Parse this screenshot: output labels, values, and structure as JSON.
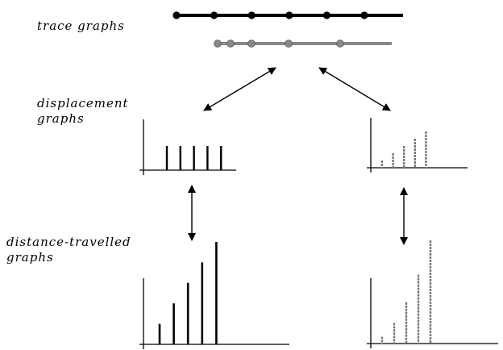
{
  "labels": {
    "trace": [
      "trace graphs"
    ],
    "displacement": [
      "displacement",
      "graphs"
    ],
    "distance": [
      "distance-travelled",
      "graphs"
    ]
  },
  "colors": {
    "ink": "#000000",
    "grey": "#888888"
  },
  "trace": {
    "uniform": {
      "color": "ink",
      "dots": 6
    },
    "accelerating": {
      "color": "grey",
      "dots": 5
    }
  },
  "graphs": {
    "displacement_uniform": [
      1,
      1,
      1,
      1,
      1
    ],
    "displacement_accelerating": [
      1,
      2,
      3,
      4,
      5
    ],
    "distance_uniform": [
      1,
      2,
      3,
      4,
      5
    ],
    "distance_accelerating": [
      1,
      3,
      6,
      10,
      15
    ]
  }
}
